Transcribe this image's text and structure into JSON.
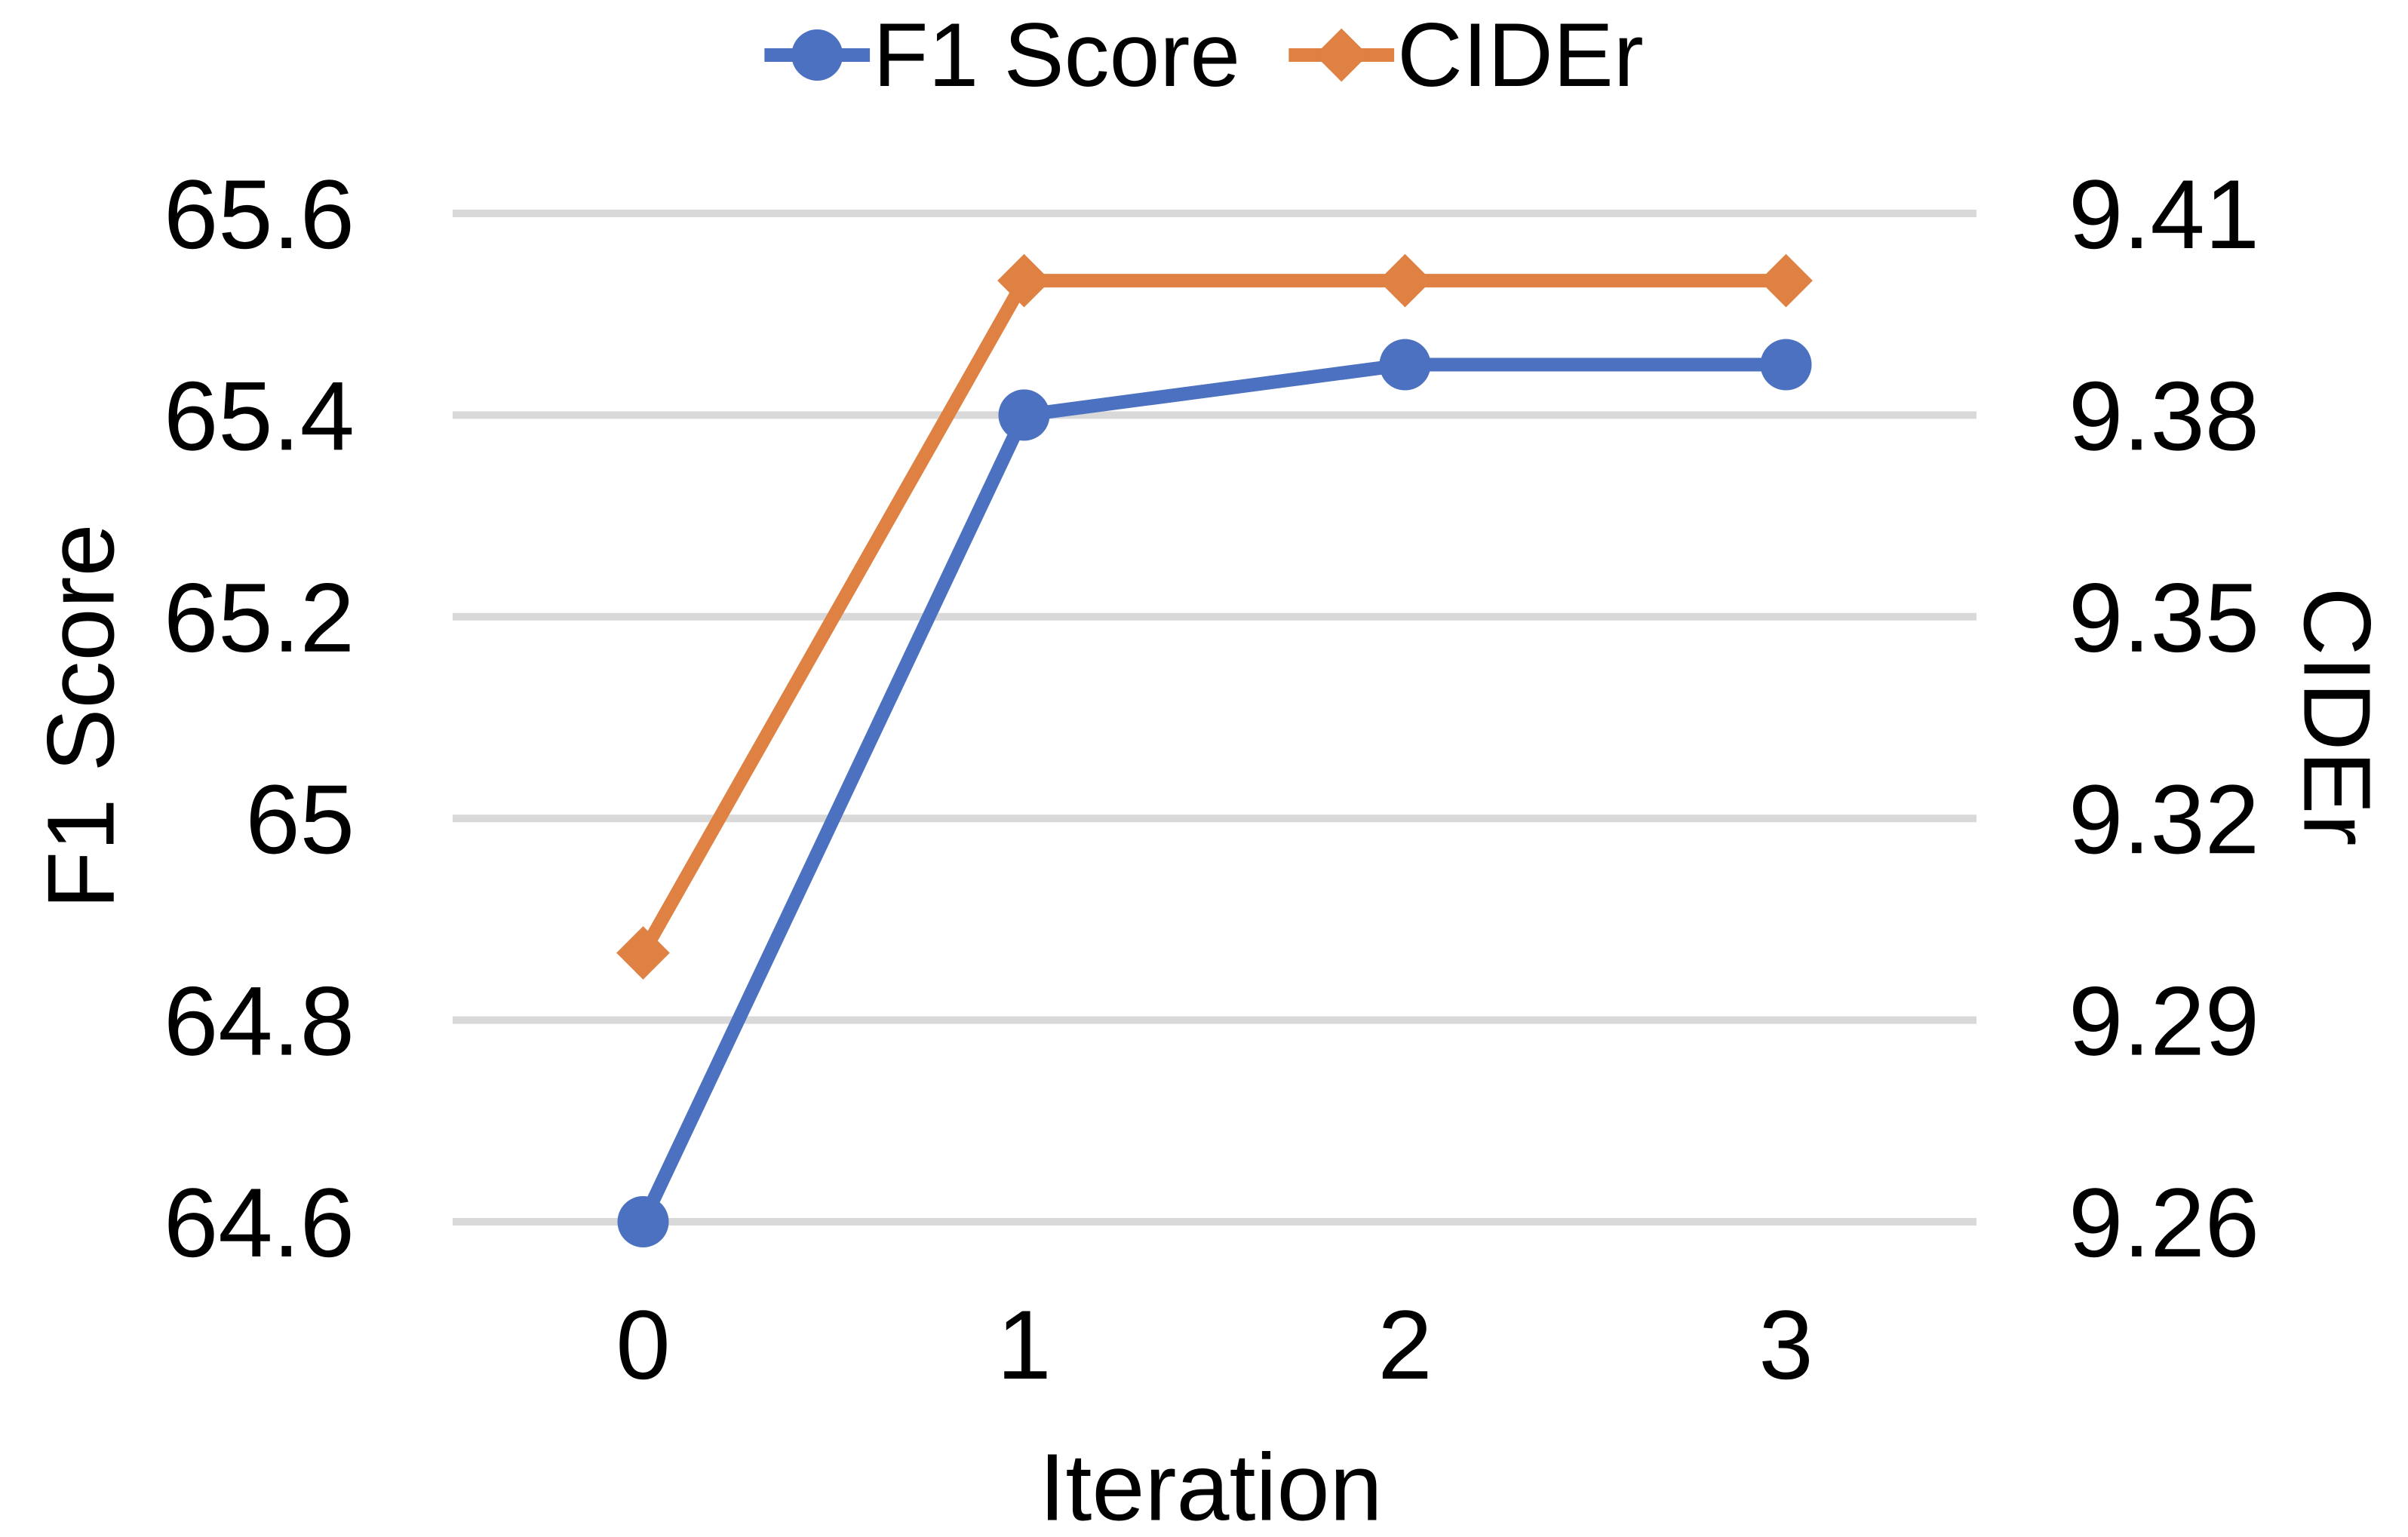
{
  "figure": {
    "background": "#FFFFFF",
    "text_color": "#000000",
    "gridline_color": "#D9D9D9"
  },
  "chart_data": {
    "type": "line",
    "title": "",
    "x_title": "Iteration",
    "x_tick_labels": [
      "0",
      "1",
      "2",
      "3"
    ],
    "grid": "horizontal",
    "legend_position": "top-center",
    "axes": {
      "left": {
        "title": "F1 Score",
        "min": 64.6,
        "max": 65.6,
        "ticks": [
          "65.6",
          "65.4",
          "65.2",
          "65",
          "64.8",
          "64.6"
        ]
      },
      "right": {
        "title": "CIDEr",
        "min": 9.26,
        "max": 9.41,
        "ticks": [
          "9.41",
          "9.38",
          "9.35",
          "9.32",
          "9.29",
          "9.26"
        ]
      }
    },
    "series": [
      {
        "name": "F1 Score",
        "axis": "left",
        "marker": "circle",
        "color": "#4B71C0",
        "values": [
          64.6,
          65.4,
          65.45,
          65.45
        ]
      },
      {
        "name": "CIDEr",
        "axis": "right",
        "marker": "diamond",
        "color": "#DE8142",
        "values": [
          9.3,
          9.4,
          9.4,
          9.4
        ]
      }
    ]
  }
}
